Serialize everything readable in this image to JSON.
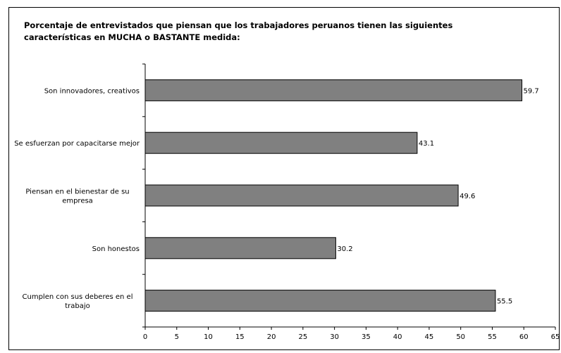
{
  "chart_data": {
    "type": "bar",
    "orientation": "horizontal",
    "title_lines": [
      "Porcentaje de entrevistados que piensan que los trabajadores peruanos tienen las siguientes",
      "características en MUCHA o BASTANTE medida:"
    ],
    "categories": [
      [
        "Son innovadores, creativos"
      ],
      [
        "Se esfuerzan por capacitarse mejor"
      ],
      [
        "Piensan en el bienestar de su",
        "empresa"
      ],
      [
        "Son honestos"
      ],
      [
        "Cumplen con sus deberes en el",
        "trabajo"
      ]
    ],
    "values": [
      59.7,
      43.1,
      49.6,
      30.2,
      55.5
    ],
    "value_labels": [
      "59.7",
      "43.1",
      "49.6",
      "30.2",
      "55.5"
    ],
    "x_ticks": [
      "0",
      "5",
      "10",
      "15",
      "20",
      "25",
      "30",
      "35",
      "40",
      "45",
      "50",
      "55",
      "60",
      "65"
    ],
    "xlim": [
      0,
      65
    ],
    "xlabel": "",
    "ylabel": "",
    "grid": false,
    "legend": "none",
    "bar_color": "#808080",
    "bar_stroke": "#000000"
  }
}
